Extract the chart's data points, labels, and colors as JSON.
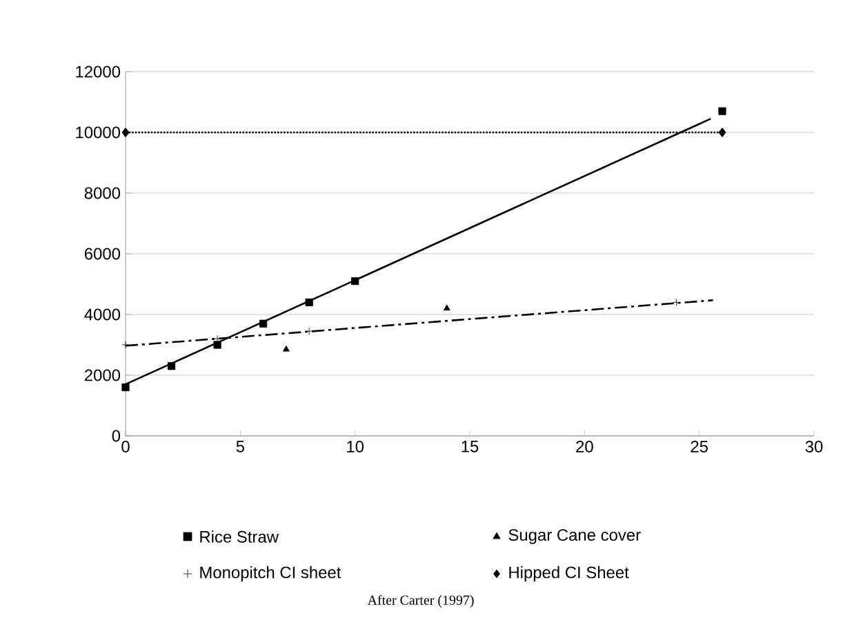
{
  "chart_data": {
    "type": "scatter",
    "xlim": [
      0,
      30
    ],
    "ylim": [
      0,
      12000
    ],
    "xticks": [
      0,
      5,
      10,
      15,
      20,
      25,
      30
    ],
    "yticks": [
      0,
      2000,
      4000,
      6000,
      8000,
      10000,
      12000
    ],
    "grid": "y",
    "legend": "bottom",
    "annotations": [
      "After Carter (1997)"
    ],
    "series": [
      {
        "name": "Rice Straw",
        "color": "#000000",
        "marker": "square",
        "x": [
          0,
          2,
          4,
          6,
          8,
          10,
          26
        ],
        "values": [
          1600,
          2300,
          3000,
          3700,
          4400,
          5100,
          10700
        ]
      },
      {
        "name": "Sugar Cane cover",
        "color": "#000000",
        "marker": "triangle",
        "x": [
          7,
          14
        ],
        "values": [
          2850,
          4200
        ]
      },
      {
        "name": "Monopitch CI sheet",
        "color": "#000000",
        "marker": "cross",
        "x": [
          0,
          4,
          8,
          24
        ],
        "values": [
          3000,
          3200,
          3450,
          4400
        ]
      },
      {
        "name": "Hipped  CI Sheet",
        "color": "#000000",
        "marker": "diamond",
        "type": "line",
        "line_style": "dotted",
        "x": [
          0,
          26
        ],
        "values": [
          10000,
          10000
        ]
      },
      {
        "type": "line",
        "color": "#000000",
        "line_style": "solid",
        "marker": "none",
        "x": [
          0,
          25.5
        ],
        "values": [
          1700,
          10450
        ]
      },
      {
        "type": "line",
        "color": "#000000",
        "line_style": "dashdot",
        "marker": "none",
        "x": [
          0,
          25.6
        ],
        "values": [
          2970,
          4470
        ]
      }
    ]
  }
}
